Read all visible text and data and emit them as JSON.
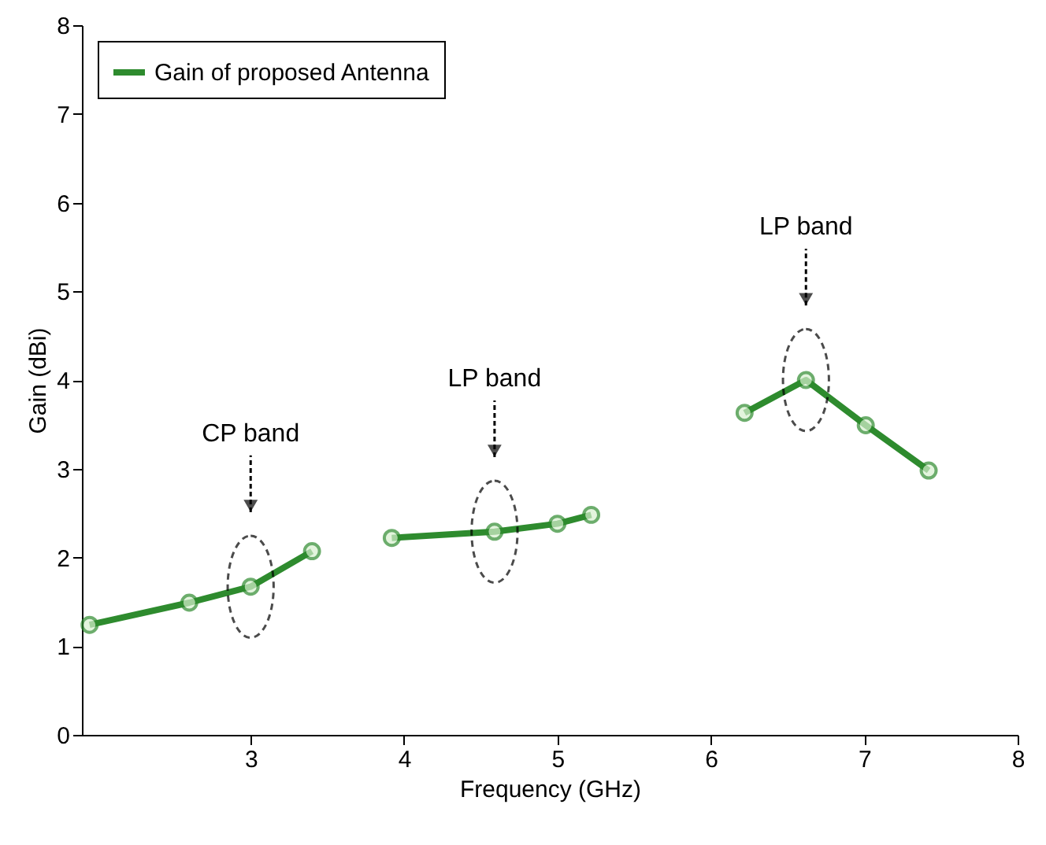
{
  "chart_data": {
    "type": "line",
    "xlabel": "Frequency (GHz)",
    "ylabel": "Gain (dBi)",
    "xlim": [
      1.9,
      8
    ],
    "xticks": [
      3,
      4,
      5,
      6,
      7,
      8
    ],
    "ylim": [
      0,
      8
    ],
    "yticks": [
      0,
      1,
      2,
      3,
      4,
      5,
      6,
      7,
      8
    ],
    "series": [
      {
        "name": "Gain of proposed Antenna",
        "color": "#2e8b2e",
        "x": [
          1.95,
          2.6,
          3.0,
          3.4
        ],
        "values": [
          1.24,
          1.49,
          1.67,
          2.07
        ]
      },
      {
        "color": "#2e8b2e",
        "x": [
          3.92,
          4.59,
          5.0,
          5.22
        ],
        "values": [
          2.22,
          2.29,
          2.38,
          2.48
        ]
      },
      {
        "color": "#2e8b2e",
        "x": [
          6.22,
          6.62,
          7.01,
          7.42
        ],
        "values": [
          3.63,
          4.0,
          3.49,
          2.98
        ]
      }
    ],
    "annotations": [
      "CP band",
      "LP band",
      "LP band"
    ],
    "marker": "circle",
    "line_style": "solid",
    "legend": "top left",
    "grid": false
  }
}
